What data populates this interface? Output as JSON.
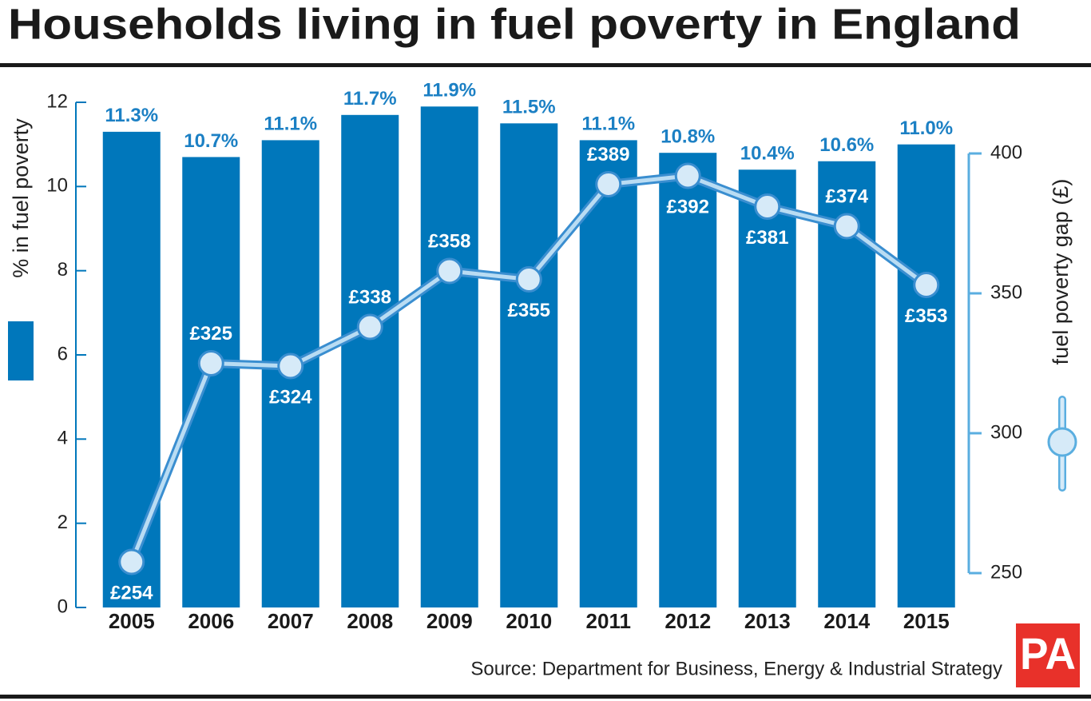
{
  "chart_data": {
    "type": "bar",
    "title": "Households living in fuel poverty in England",
    "source": "Source: Department for Business, Energy & Industrial Strategy",
    "logo": "PA",
    "categories": [
      "2005",
      "2006",
      "2007",
      "2008",
      "2009",
      "2010",
      "2011",
      "2012",
      "2013",
      "2014",
      "2015"
    ],
    "series": [
      {
        "name": "% in fuel poverty",
        "type": "bar",
        "color": "#0077bb",
        "values": [
          11.3,
          10.7,
          11.1,
          11.7,
          11.9,
          11.5,
          11.1,
          10.8,
          10.4,
          10.6,
          11.0
        ],
        "value_labels": [
          "11.3%",
          "10.7%",
          "11.1%",
          "11.7%",
          "11.9%",
          "11.5%",
          "11.1%",
          "10.8%",
          "10.4%",
          "10.6%",
          "11.0%"
        ]
      },
      {
        "name": "fuel poverty gap (£)",
        "type": "line",
        "axis": "y2",
        "color": "#d6eaf8",
        "values": [
          254,
          325,
          324,
          338,
          358,
          355,
          389,
          392,
          381,
          374,
          353
        ],
        "value_labels": [
          "£254",
          "£325",
          "£324",
          "£338",
          "£358",
          "£355",
          "£389",
          "£392",
          "£381",
          "£374",
          "£353"
        ]
      }
    ],
    "ylim": [
      0,
      12
    ],
    "yticks": [
      0,
      2,
      4,
      6,
      8,
      10,
      12
    ],
    "y2lim": [
      250,
      400
    ],
    "y2ticks": [
      250,
      300,
      350,
      400
    ]
  }
}
